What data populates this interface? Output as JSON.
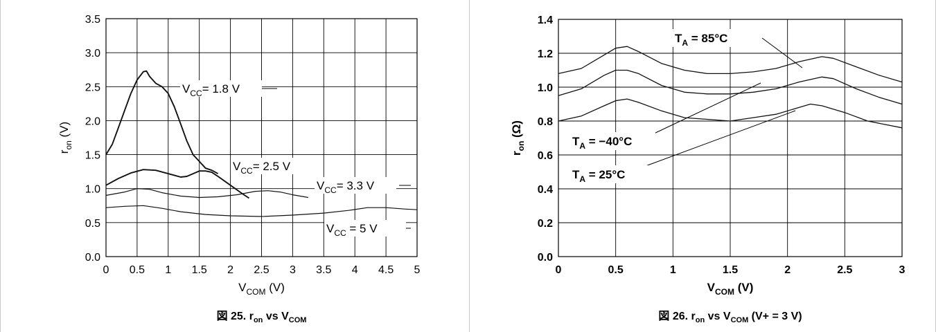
{
  "chart_data": [
    {
      "type": "line",
      "title": "",
      "caption": {
        "prefix": "図 25. ",
        "main": "r",
        "main_sub": "on",
        "mid": " vs V",
        "mid_sub": "COM",
        "suffix": ""
      },
      "xlabel": {
        "main": "V",
        "sub": "COM",
        "rest": " (V)"
      },
      "ylabel": {
        "main": "r",
        "sub": "on",
        "rest": " (V)"
      },
      "xlim": [
        0,
        5
      ],
      "ylim": [
        0,
        3.5
      ],
      "x_ticks": [
        "0",
        "0.5",
        "1",
        "1.5",
        "2",
        "2.5",
        "3",
        "3.5",
        "4",
        "4.5",
        "5"
      ],
      "y_ticks": [
        "0.0",
        "0.5",
        "1.0",
        "1.5",
        "2.0",
        "2.5",
        "3.0",
        "3.5"
      ],
      "grid": true,
      "series": [
        {
          "name": "V_CC = 1.8 V",
          "x": [
            0.0,
            0.1,
            0.2,
            0.3,
            0.4,
            0.5,
            0.6,
            0.65,
            0.7,
            0.8,
            0.9,
            1.0,
            1.1,
            1.2,
            1.3,
            1.4,
            1.5,
            1.6,
            1.7,
            1.8
          ],
          "y": [
            1.5,
            1.65,
            1.9,
            2.15,
            2.4,
            2.6,
            2.72,
            2.73,
            2.65,
            2.55,
            2.5,
            2.4,
            2.2,
            1.95,
            1.7,
            1.5,
            1.4,
            1.3,
            1.27,
            1.22
          ]
        },
        {
          "name": "V_CC = 2.5 V",
          "x": [
            0.0,
            0.2,
            0.4,
            0.6,
            0.8,
            1.0,
            1.2,
            1.3,
            1.4,
            1.5,
            1.6,
            1.7,
            1.8,
            2.0,
            2.2,
            2.3
          ],
          "y": [
            1.05,
            1.15,
            1.23,
            1.28,
            1.27,
            1.22,
            1.17,
            1.18,
            1.22,
            1.26,
            1.26,
            1.24,
            1.18,
            1.05,
            0.92,
            0.86
          ]
        },
        {
          "name": "V_CC = 3.3 V",
          "x": [
            0.0,
            0.3,
            0.5,
            0.7,
            0.9,
            1.2,
            1.5,
            1.8,
            2.1,
            2.4,
            2.6,
            2.8,
            3.0,
            3.25
          ],
          "y": [
            0.9,
            0.95,
            1.0,
            0.99,
            0.94,
            0.89,
            0.87,
            0.88,
            0.91,
            0.96,
            0.97,
            0.95,
            0.91,
            0.87
          ]
        },
        {
          "name": "V_CC = 5 V",
          "x": [
            0.0,
            0.3,
            0.6,
            0.9,
            1.2,
            1.6,
            2.0,
            2.5,
            3.0,
            3.5,
            3.9,
            4.2,
            4.5,
            4.8,
            5.0
          ],
          "y": [
            0.72,
            0.74,
            0.75,
            0.71,
            0.66,
            0.62,
            0.6,
            0.59,
            0.61,
            0.64,
            0.68,
            0.72,
            0.72,
            0.7,
            0.69
          ]
        }
      ],
      "annotations": [
        {
          "main": "V",
          "sub": "CC",
          "rest": "= 1.8 V"
        },
        {
          "main": "V",
          "sub": "CC",
          "rest": "= 2.5 V"
        },
        {
          "main": "V",
          "sub": "CC",
          "rest": "= 3.3 V"
        },
        {
          "main": "V",
          "sub": "CC",
          "rest": " = 5 V"
        }
      ]
    },
    {
      "type": "line",
      "title": "",
      "caption": {
        "prefix": "図 26. ",
        "main": "r",
        "main_sub": "on",
        "mid": " vs V",
        "mid_sub": "COM",
        "suffix": " (V+ = 3 V)"
      },
      "xlabel": {
        "main": "V",
        "sub": "COM",
        "rest": " (V)"
      },
      "ylabel": {
        "main": "r",
        "sub": "on",
        "rest": " (Ω)"
      },
      "xlim": [
        0,
        3
      ],
      "ylim": [
        0,
        1.4
      ],
      "x_ticks": [
        "0",
        "0.5",
        "1",
        "1.5",
        "2",
        "2.5",
        "3"
      ],
      "y_ticks": [
        "0.0",
        "0.2",
        "0.4",
        "0.6",
        "0.8",
        "1.0",
        "1.2",
        "1.4"
      ],
      "grid": true,
      "series": [
        {
          "name": "T_A = 85°C",
          "x": [
            0.0,
            0.2,
            0.4,
            0.5,
            0.6,
            0.7,
            0.9,
            1.1,
            1.3,
            1.5,
            1.7,
            1.9,
            2.1,
            2.3,
            2.4,
            2.6,
            2.8,
            3.0
          ],
          "y": [
            1.08,
            1.11,
            1.19,
            1.23,
            1.24,
            1.21,
            1.14,
            1.1,
            1.08,
            1.08,
            1.09,
            1.11,
            1.15,
            1.18,
            1.17,
            1.12,
            1.07,
            1.03
          ]
        },
        {
          "name": "T_A = 25°C",
          "x": [
            0.0,
            0.2,
            0.4,
            0.5,
            0.6,
            0.7,
            0.9,
            1.1,
            1.3,
            1.5,
            1.7,
            1.9,
            2.1,
            2.3,
            2.4,
            2.6,
            2.8,
            3.0
          ],
          "y": [
            0.95,
            0.99,
            1.07,
            1.1,
            1.1,
            1.08,
            1.01,
            0.97,
            0.96,
            0.96,
            0.97,
            0.99,
            1.03,
            1.06,
            1.05,
            0.99,
            0.94,
            0.9
          ]
        },
        {
          "name": "T_A = −40°C",
          "x": [
            0.0,
            0.2,
            0.4,
            0.5,
            0.6,
            0.7,
            0.9,
            1.1,
            1.3,
            1.5,
            1.7,
            1.9,
            2.1,
            2.2,
            2.3,
            2.5,
            2.7,
            3.0
          ],
          "y": [
            0.8,
            0.83,
            0.89,
            0.92,
            0.93,
            0.91,
            0.86,
            0.82,
            0.81,
            0.8,
            0.82,
            0.84,
            0.88,
            0.9,
            0.89,
            0.85,
            0.8,
            0.76
          ]
        }
      ],
      "annotations": [
        {
          "main": "T",
          "sub": "A",
          "rest": " = 85°C"
        },
        {
          "main": "T",
          "sub": "A",
          "rest": " = −40°C"
        },
        {
          "main": "T",
          "sub": "A",
          "rest": " = 25°C"
        }
      ]
    }
  ]
}
